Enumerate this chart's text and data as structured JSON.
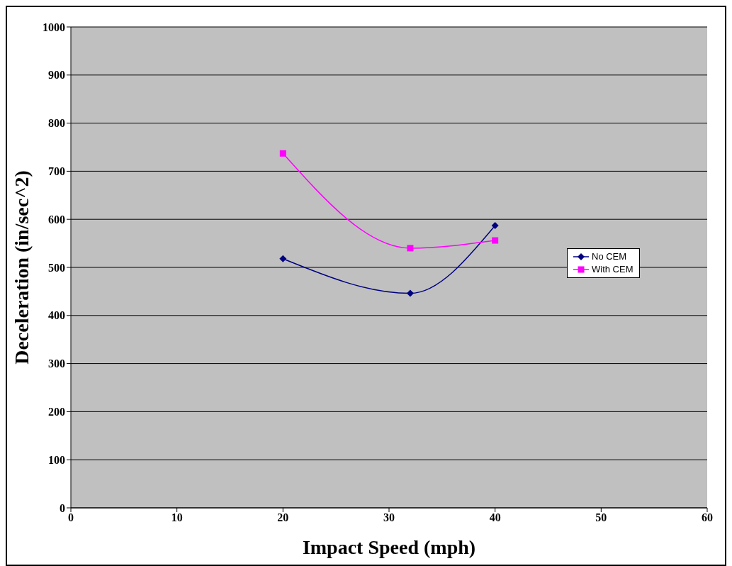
{
  "chart_data": {
    "type": "line",
    "xlabel": "Impact Speed (mph)",
    "ylabel": "Deceleration (in/sec^2)",
    "x": [
      20,
      32,
      40
    ],
    "series": [
      {
        "name": "No CEM",
        "color": "#000080",
        "marker": "diamond",
        "values": [
          518,
          446,
          587
        ]
      },
      {
        "name": "With CEM",
        "color": "#ff00ff",
        "marker": "square",
        "values": [
          737,
          540,
          556
        ]
      }
    ],
    "xlim": [
      0,
      60
    ],
    "xticks": [
      0,
      10,
      20,
      30,
      40,
      50,
      60
    ],
    "ylim": [
      0,
      1000
    ],
    "yticks": [
      0,
      100,
      200,
      300,
      400,
      500,
      600,
      700,
      800,
      900,
      1000
    ],
    "grid": "y",
    "legend": "right",
    "line_style": "solid"
  }
}
